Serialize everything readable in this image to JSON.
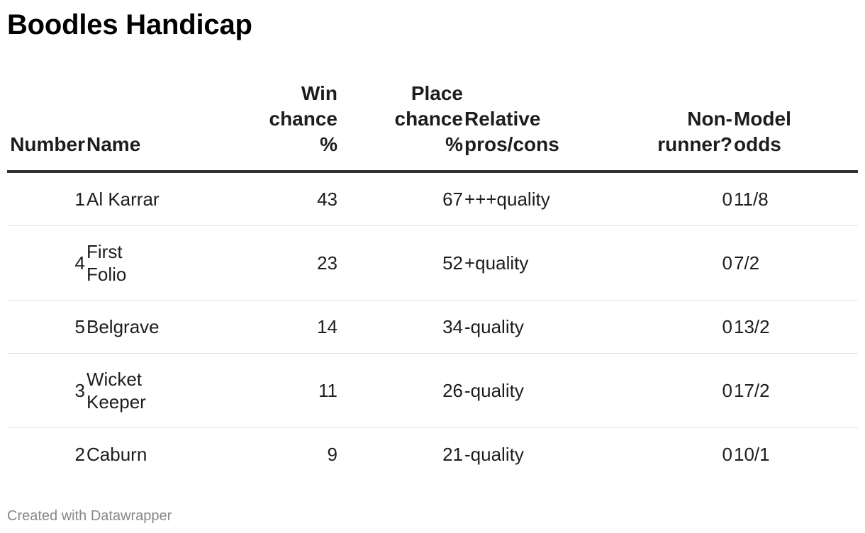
{
  "title": "Boodles Handicap",
  "footer": "Created with Datawrapper",
  "chart_data": {
    "type": "table",
    "title": "Boodles Handicap",
    "columns": [
      {
        "key": "number",
        "label_lines": [
          "Number"
        ],
        "align": "right"
      },
      {
        "key": "name",
        "label_lines": [
          "Name"
        ],
        "align": "left"
      },
      {
        "key": "win",
        "label_lines": [
          "Win",
          "chance",
          "%"
        ],
        "align": "right"
      },
      {
        "key": "place",
        "label_lines": [
          "Place",
          "chance",
          "%"
        ],
        "align": "right"
      },
      {
        "key": "pros",
        "label_lines": [
          "Relative",
          "pros/cons"
        ],
        "align": "left"
      },
      {
        "key": "nonrunner",
        "label_lines": [
          "Non-",
          "runner?"
        ],
        "align": "right"
      },
      {
        "key": "odds",
        "label_lines": [
          "Model",
          "odds"
        ],
        "align": "left"
      }
    ],
    "rows": [
      {
        "number": "1",
        "name_lines": [
          "Al Karrar"
        ],
        "win": "43",
        "place": "67",
        "pros": "+++quality",
        "nonrunner": "0",
        "odds": "11/8"
      },
      {
        "number": "4",
        "name_lines": [
          "First",
          "Folio"
        ],
        "win": "23",
        "place": "52",
        "pros": "+quality",
        "nonrunner": "0",
        "odds": "7/2"
      },
      {
        "number": "5",
        "name_lines": [
          "Belgrave"
        ],
        "win": "14",
        "place": "34",
        "pros": "-quality",
        "nonrunner": "0",
        "odds": "13/2"
      },
      {
        "number": "3",
        "name_lines": [
          "Wicket",
          "Keeper"
        ],
        "win": "11",
        "place": "26",
        "pros": "-quality",
        "nonrunner": "0",
        "odds": "17/2"
      },
      {
        "number": "2",
        "name_lines": [
          "Caburn"
        ],
        "win": "9",
        "place": "21",
        "pros": "-quality",
        "nonrunner": "0",
        "odds": "10/1"
      }
    ]
  }
}
